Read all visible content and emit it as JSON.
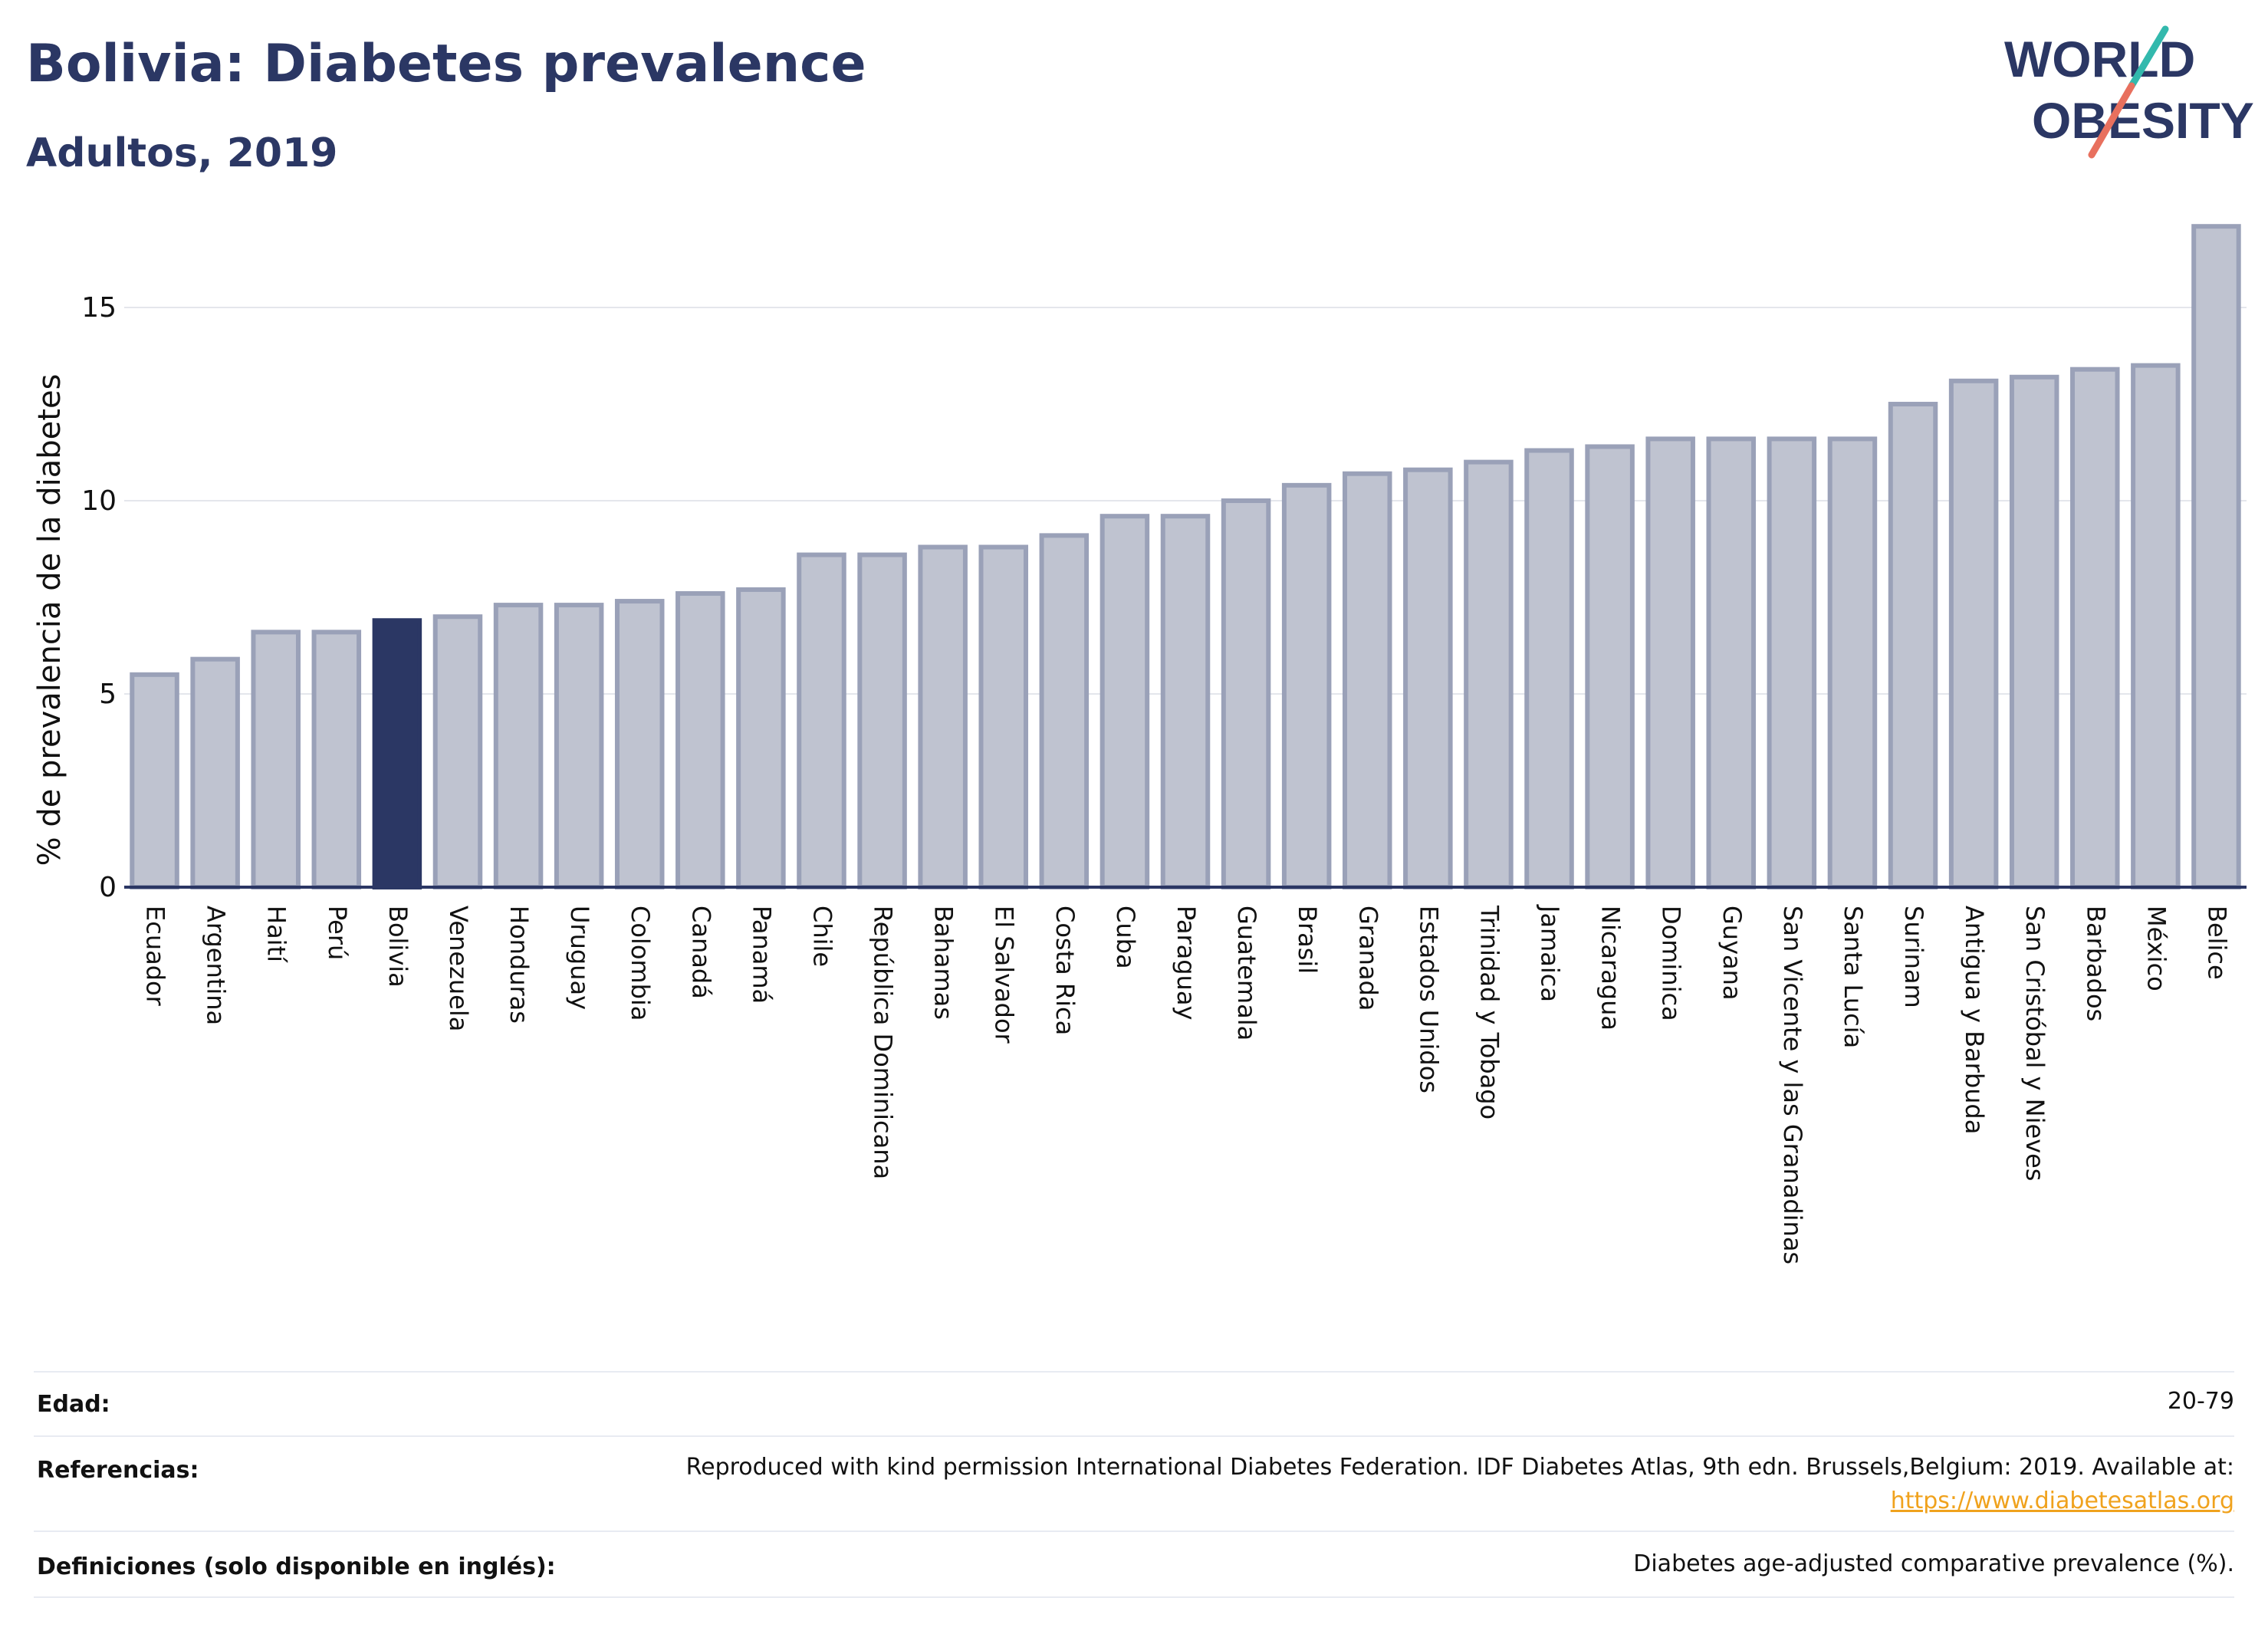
{
  "title": "Bolivia: Diabetes prevalence",
  "subtitle": "Adultos, 2019",
  "logo": {
    "line1": "WORLD",
    "line2": "OBESITY"
  },
  "colors": {
    "highlight": "#2b3764",
    "bar_fill": "#bfc3d0",
    "bar_stroke": "#9aa1b8",
    "title": "#2b3764",
    "link": "#f0a21d"
  },
  "chart_data": {
    "type": "bar",
    "ylabel": "% de prevalencia de la diabetes",
    "xlabel": "",
    "ylim": [
      0,
      17.6
    ],
    "yticks": [
      0,
      5,
      10,
      15
    ],
    "grid": true,
    "highlight": "Bolivia",
    "categories": [
      "Ecuador",
      "Argentina",
      "Haití",
      "Perú",
      "Bolivia",
      "Venezuela",
      "Honduras",
      "Uruguay",
      "Colombia",
      "Canadá",
      "Panamá",
      "Chile",
      "República Dominicana",
      "Bahamas",
      "El Salvador",
      "Costa Rica",
      "Cuba",
      "Paraguay",
      "Guatemala",
      "Brasil",
      "Granada",
      "Estados Unidos",
      "Trinidad y Tobago",
      "Jamaica",
      "Nicaragua",
      "Dominica",
      "Guyana",
      "San Vicente y las Granadinas",
      "Santa Lucía",
      "Surinam",
      "Antigua y Barbuda",
      "San Cristóbal y Nieves",
      "Barbados",
      "México",
      "Belice"
    ],
    "values": [
      5.5,
      5.9,
      6.6,
      6.6,
      6.9,
      7.0,
      7.3,
      7.3,
      7.4,
      7.6,
      7.7,
      8.6,
      8.6,
      8.8,
      8.8,
      9.1,
      9.6,
      9.6,
      10.0,
      10.4,
      10.7,
      10.8,
      11.0,
      11.3,
      11.4,
      11.6,
      11.6,
      11.6,
      11.6,
      12.5,
      13.1,
      13.2,
      13.4,
      13.5,
      17.1
    ]
  },
  "meta": {
    "edad_label": "Edad:",
    "edad_value": "20-79",
    "ref_label": "Referencias:",
    "ref_value": "Reproduced with kind permission International Diabetes Federation. IDF Diabetes Atlas, 9th edn. Brussels,Belgium: 2019. Available at:",
    "ref_link": "https://www.diabetesatlas.org",
    "def_label": "Definiciones (solo disponible en inglés):",
    "def_value": "Diabetes age-adjusted comparative prevalence (%)."
  }
}
